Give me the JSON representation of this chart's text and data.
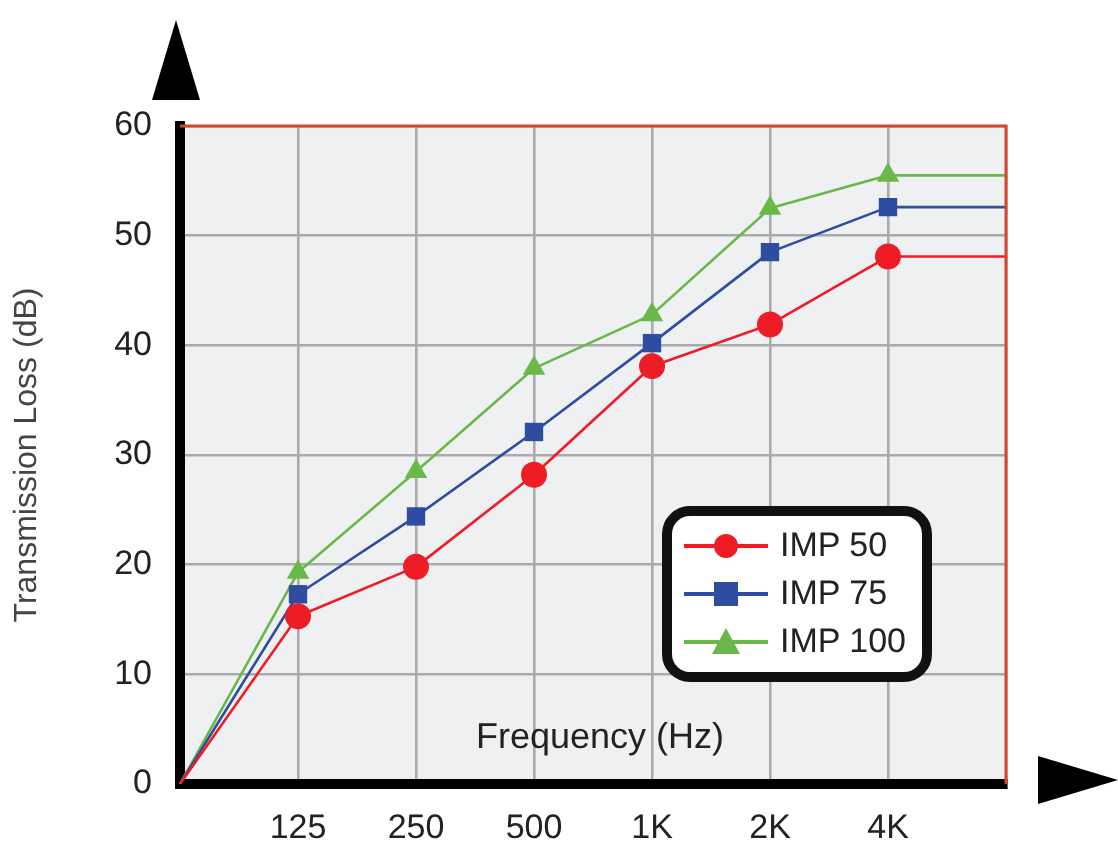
{
  "chart_data": {
    "type": "line",
    "xlabel": "Frequency (Hz)",
    "ylabel": "Transmission Loss (dB)",
    "categories": [
      null,
      "125",
      "250",
      "500",
      "1K",
      "2K",
      "4K",
      null
    ],
    "series": [
      {
        "name": "IMP 50",
        "color": "#ee1c25",
        "marker": "circle",
        "values": [
          0,
          15.3,
          19.8,
          28.2,
          38.1,
          41.9,
          48.1,
          48.1
        ]
      },
      {
        "name": "IMP 75",
        "color": "#2e4da0",
        "marker": "square",
        "values": [
          0,
          17.3,
          24.4,
          32.1,
          40.2,
          48.5,
          52.6,
          52.6
        ]
      },
      {
        "name": "IMP 100",
        "color": "#6ab84a",
        "marker": "triangle",
        "values": [
          0,
          19.3,
          28.5,
          37.9,
          42.8,
          52.5,
          55.5,
          55.5
        ]
      }
    ],
    "ylim": [
      0,
      60
    ],
    "yticks": [
      0,
      10,
      20,
      30,
      40,
      50,
      60
    ],
    "grid": true,
    "legend": "bottom right",
    "line_style": "solid"
  }
}
